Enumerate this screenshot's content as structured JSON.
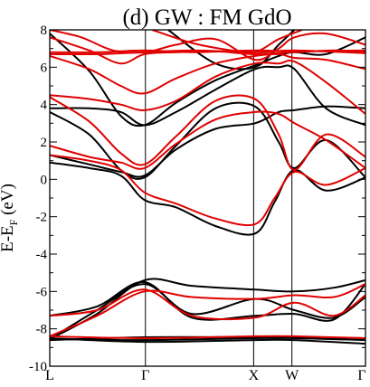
{
  "chart_data": {
    "type": "line",
    "title": "(d) GW : FM GdO",
    "ylabel": "E-E",
    "ylabel_sub": "F",
    "ylabel_unit": " (eV)",
    "xlabel": "",
    "ylim": [
      -10,
      8
    ],
    "yticks": [
      -10,
      -8,
      -6,
      -4,
      -2,
      0,
      2,
      4,
      6,
      8
    ],
    "xlim": [
      0,
      4
    ],
    "kpoints": [
      {
        "label": "L",
        "x": 0
      },
      {
        "label": "Γ",
        "x": 1.212
      },
      {
        "label": "X",
        "x": 2.583
      },
      {
        "label": "W",
        "x": 3.068
      },
      {
        "label": "Γ",
        "x": 4
      }
    ],
    "grid": false,
    "legend": "none",
    "colors": {
      "spin_up": "#000000",
      "spin_down": "#e00000"
    },
    "series": [
      {
        "color": "#000000",
        "points": [
          [
            0,
            -8.5
          ],
          [
            1.2,
            -8.7
          ],
          [
            2.6,
            -8.6
          ],
          [
            3.1,
            -8.6
          ],
          [
            4,
            -8.8
          ]
        ]
      },
      {
        "color": "#000000",
        "points": [
          [
            0,
            -8.55
          ],
          [
            1.2,
            -8.6
          ],
          [
            2.6,
            -8.5
          ],
          [
            3.1,
            -8.5
          ],
          [
            4,
            -8.6
          ]
        ]
      },
      {
        "color": "#000000",
        "points": [
          [
            0,
            -8.6
          ],
          [
            1.2,
            -8.45
          ],
          [
            2.6,
            -8.45
          ],
          [
            3.1,
            -8.45
          ],
          [
            4,
            -8.5
          ]
        ]
      },
      {
        "color": "#000000",
        "points": [
          [
            0,
            -8.55
          ],
          [
            0.6,
            -7.2
          ],
          [
            1.2,
            -5.4
          ],
          [
            1.8,
            -5.7
          ],
          [
            2.6,
            -5.9
          ],
          [
            3.1,
            -6.0
          ],
          [
            3.6,
            -5.8
          ],
          [
            4,
            -5.4
          ]
        ]
      },
      {
        "color": "#000000",
        "points": [
          [
            0,
            -8.55
          ],
          [
            0.6,
            -7.0
          ],
          [
            1.2,
            -5.6
          ],
          [
            1.8,
            -7.2
          ],
          [
            2.6,
            -6.4
          ],
          [
            3.1,
            -7.0
          ],
          [
            3.6,
            -7.4
          ],
          [
            4,
            -6.3
          ]
        ]
      },
      {
        "color": "#000000",
        "points": [
          [
            0,
            -7.3
          ],
          [
            0.6,
            -6.8
          ],
          [
            1.2,
            -5.5
          ],
          [
            1.8,
            -7.4
          ],
          [
            2.6,
            -7.3
          ],
          [
            3.1,
            -7.2
          ],
          [
            3.6,
            -7.5
          ],
          [
            4,
            -5.6
          ]
        ]
      },
      {
        "color": "#000000",
        "points": [
          [
            0,
            0.9
          ],
          [
            0.5,
            0.6
          ],
          [
            0.9,
            0.2
          ],
          [
            1.2,
            -1.1
          ],
          [
            1.6,
            -1.5
          ],
          [
            2.1,
            -2.5
          ],
          [
            2.6,
            -2.9
          ],
          [
            2.85,
            -1.2
          ],
          [
            3.1,
            0.5
          ],
          [
            3.5,
            -0.6
          ],
          [
            4,
            0.1
          ]
        ]
      },
      {
        "color": "#000000",
        "points": [
          [
            0,
            1.3
          ],
          [
            0.5,
            0.8
          ],
          [
            0.9,
            0.4
          ],
          [
            1.2,
            0.2
          ],
          [
            1.6,
            1.6
          ],
          [
            2.1,
            2.7
          ],
          [
            2.6,
            3.0
          ],
          [
            2.9,
            3.6
          ],
          [
            3.1,
            3.7
          ],
          [
            3.5,
            3.9
          ],
          [
            4,
            3.8
          ]
        ]
      },
      {
        "color": "#000000",
        "points": [
          [
            0,
            3.6
          ],
          [
            0.5,
            2.4
          ],
          [
            0.9,
            0.5
          ],
          [
            1.2,
            0.1
          ],
          [
            1.6,
            1.8
          ],
          [
            2.1,
            3.8
          ],
          [
            2.6,
            3.9
          ],
          [
            2.9,
            2.0
          ],
          [
            3.1,
            0.6
          ],
          [
            3.5,
            2.1
          ],
          [
            4,
            0.1
          ]
        ]
      },
      {
        "color": "#000000",
        "points": [
          [
            0,
            3.8
          ],
          [
            0.5,
            3.8
          ],
          [
            0.9,
            3.6
          ],
          [
            1.2,
            2.9
          ],
          [
            1.6,
            3.6
          ],
          [
            2.1,
            4.8
          ],
          [
            2.6,
            5.9
          ],
          [
            2.9,
            6.0
          ],
          [
            3.1,
            5.9
          ],
          [
            3.5,
            3.8
          ],
          [
            4,
            2.9
          ]
        ]
      },
      {
        "color": "#000000",
        "points": [
          [
            0,
            7.8
          ],
          [
            0.5,
            5.8
          ],
          [
            0.9,
            3.4
          ],
          [
            1.2,
            2.9
          ],
          [
            1.6,
            4.1
          ],
          [
            2.1,
            5.3
          ],
          [
            2.6,
            6.1
          ],
          [
            2.9,
            6.6
          ],
          [
            3.1,
            6.8
          ],
          [
            3.5,
            6.7
          ],
          [
            4,
            7.6
          ]
        ]
      },
      {
        "color": "#000000",
        "points": [
          [
            1.5,
            8
          ],
          [
            2.1,
            6.2
          ],
          [
            2.6,
            6.0
          ],
          [
            2.9,
            7.2
          ],
          [
            3.1,
            8
          ]
        ]
      },
      {
        "color": "#e00000",
        "points": [
          [
            0,
            -8.4
          ],
          [
            1.2,
            -8.5
          ],
          [
            2.6,
            -8.4
          ],
          [
            3.1,
            -8.4
          ],
          [
            4,
            -8.5
          ]
        ]
      },
      {
        "color": "#e00000",
        "points": [
          [
            0,
            -8.4
          ],
          [
            0.6,
            -7.3
          ],
          [
            1.2,
            -6.0
          ],
          [
            1.8,
            -6.3
          ],
          [
            2.6,
            -6.4
          ],
          [
            3.1,
            -6.2
          ],
          [
            3.6,
            -6.3
          ],
          [
            4,
            -5.6
          ]
        ]
      },
      {
        "color": "#e00000",
        "points": [
          [
            0,
            -7.3
          ],
          [
            0.6,
            -7.0
          ],
          [
            1.2,
            -5.9
          ],
          [
            1.8,
            -7.3
          ],
          [
            2.6,
            -7.4
          ],
          [
            3.1,
            -6.6
          ],
          [
            3.6,
            -7.3
          ],
          [
            4,
            -6.2
          ]
        ]
      },
      {
        "color": "#e00000",
        "points": [
          [
            0,
            1.3
          ],
          [
            0.5,
            1.0
          ],
          [
            0.9,
            0.5
          ],
          [
            1.2,
            -0.7
          ],
          [
            1.6,
            -1.3
          ],
          [
            2.1,
            -2.1
          ],
          [
            2.6,
            -2.4
          ],
          [
            2.85,
            -1.0
          ],
          [
            3.1,
            0.4
          ],
          [
            3.5,
            -0.3
          ],
          [
            4,
            0.6
          ]
        ]
      },
      {
        "color": "#e00000",
        "points": [
          [
            0,
            1.8
          ],
          [
            0.5,
            1.2
          ],
          [
            0.9,
            0.9
          ],
          [
            1.2,
            0.6
          ],
          [
            1.6,
            1.9
          ],
          [
            2.1,
            3.2
          ],
          [
            2.6,
            3.6
          ],
          [
            2.9,
            3.5
          ],
          [
            3.1,
            3.0
          ],
          [
            3.5,
            2.1
          ],
          [
            4,
            0.6
          ]
        ]
      },
      {
        "color": "#e00000",
        "points": [
          [
            0,
            4.4
          ],
          [
            0.5,
            3.1
          ],
          [
            0.9,
            1.4
          ],
          [
            1.2,
            0.8
          ],
          [
            1.6,
            2.3
          ],
          [
            2.1,
            4.2
          ],
          [
            2.6,
            4.3
          ],
          [
            2.9,
            2.4
          ],
          [
            3.1,
            0.5
          ],
          [
            3.5,
            2.4
          ],
          [
            4,
            1.2
          ]
        ]
      },
      {
        "color": "#e00000",
        "points": [
          [
            0,
            4.5
          ],
          [
            0.5,
            4.3
          ],
          [
            0.9,
            4.0
          ],
          [
            1.2,
            3.7
          ],
          [
            1.6,
            4.2
          ],
          [
            2.1,
            5.5
          ],
          [
            2.6,
            6.2
          ],
          [
            2.9,
            6.2
          ],
          [
            3.1,
            6.3
          ],
          [
            3.5,
            5.2
          ],
          [
            4,
            3.5
          ]
        ]
      },
      {
        "color": "#e00000",
        "points": [
          [
            0,
            6.6
          ],
          [
            0.5,
            5.9
          ],
          [
            0.9,
            5.0
          ],
          [
            1.2,
            4.6
          ],
          [
            1.6,
            5.4
          ],
          [
            2.1,
            6.2
          ],
          [
            2.6,
            6.6
          ],
          [
            2.9,
            6.7
          ],
          [
            3.1,
            6.5
          ],
          [
            3.5,
            6.4
          ],
          [
            4,
            5.9
          ]
        ]
      },
      {
        "color": "#e00000",
        "points": [
          [
            0,
            7.6
          ],
          [
            0.5,
            6.9
          ],
          [
            0.9,
            6.2
          ],
          [
            1.2,
            6.7
          ],
          [
            1.6,
            6.8
          ],
          [
            2.1,
            6.85
          ],
          [
            2.6,
            6.7
          ],
          [
            3.1,
            6.8
          ],
          [
            3.6,
            6.9
          ],
          [
            4,
            6.8
          ]
        ]
      },
      {
        "color": "#e00000",
        "points": [
          [
            0,
            6.8
          ],
          [
            0.6,
            6.8
          ],
          [
            1.2,
            6.9
          ],
          [
            1.8,
            6.8
          ],
          [
            2.6,
            6.9
          ],
          [
            3.1,
            6.85
          ],
          [
            4,
            6.9
          ]
        ]
      },
      {
        "color": "#e00000",
        "points": [
          [
            0,
            6.7
          ],
          [
            0.6,
            6.7
          ],
          [
            1.2,
            6.8
          ],
          [
            1.8,
            6.9
          ],
          [
            2.6,
            6.8
          ],
          [
            3.1,
            6.9
          ],
          [
            4,
            6.75
          ]
        ]
      },
      {
        "color": "#e00000",
        "points": [
          [
            0,
            8.0
          ],
          [
            0.4,
            7.6
          ],
          [
            0.8,
            6.9
          ],
          [
            1.2,
            6.8
          ],
          [
            1.6,
            7.2
          ],
          [
            2.1,
            7.5
          ],
          [
            2.6,
            6.4
          ],
          [
            2.9,
            7.0
          ],
          [
            3.1,
            7.6
          ],
          [
            3.5,
            7.8
          ],
          [
            4,
            7.2
          ]
        ]
      },
      {
        "color": "#e00000",
        "points": [
          [
            1.3,
            8
          ],
          [
            1.8,
            7.3
          ],
          [
            2.3,
            6.9
          ],
          [
            2.6,
            6.8
          ],
          [
            2.9,
            7.5
          ],
          [
            3.2,
            8
          ]
        ]
      }
    ]
  }
}
